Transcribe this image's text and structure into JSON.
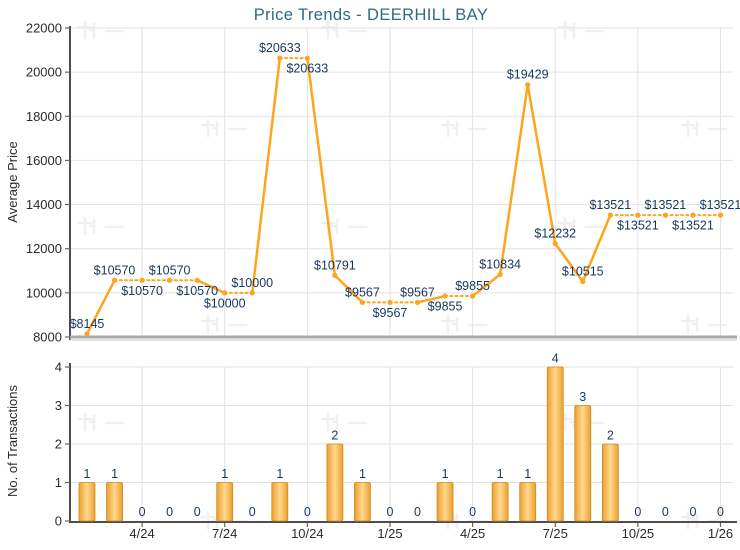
{
  "watermark_text": "科一",
  "colors": {
    "title": "#2E6C84",
    "data_label": "#17375E",
    "tick_label": "#2B2B2B",
    "grid": "#E2E2E2",
    "axis_dark": "#4D4D4D",
    "axis_tick": "#666666",
    "axis_silver": "#AAAAAA",
    "axis_silver_light": "#DADADA",
    "line": "#FFA41E",
    "bar_edge": "#EC9F2E",
    "bar_center": "#FFD88F",
    "bar_border": "#CF8A1E",
    "watermark": "#000000"
  },
  "chart_data": [
    {
      "type": "line",
      "title": "Price Trends - DEERHILL BAY",
      "ylabel": "Average Price",
      "ylim": [
        8000,
        22000
      ],
      "yticks": [
        22000,
        20000,
        18000,
        16000,
        14000,
        12000,
        10000,
        8000
      ],
      "grid": true,
      "x": [
        "2/24",
        "3/24",
        "4/24",
        "5/24",
        "6/24",
        "7/24",
        "8/24",
        "9/24",
        "10/24",
        "11/24",
        "12/24",
        "1/25",
        "2/25",
        "3/25",
        "4/25",
        "5/25",
        "6/25",
        "7/25",
        "8/25",
        "9/25",
        "10/25",
        "11/25",
        "12/25",
        "1/26"
      ],
      "xtick_labels": [
        "4/24",
        "7/24",
        "10/24",
        "1/25",
        "4/25",
        "7/25",
        "10/25",
        "1/26"
      ],
      "xtick_indices": [
        2,
        5,
        8,
        11,
        14,
        17,
        20,
        23
      ],
      "series": [
        {
          "name": "Average Price",
          "values": [
            8145,
            10570,
            10570,
            10570,
            10570,
            10000,
            10000,
            20633,
            20633,
            10791,
            9567,
            9567,
            9567,
            9855,
            9855,
            10834,
            19429,
            12232,
            10515,
            13521,
            13521,
            13521,
            13521,
            13521
          ]
        }
      ],
      "point_labels": [
        "$8145",
        "$10570",
        "$10570",
        "$10570",
        "$10570",
        "$10000",
        "$10000",
        "$20633",
        "$20633",
        "$10791",
        "$9567",
        "$9567",
        "$9567",
        "$9855",
        "$9855",
        "$10834",
        "$19429",
        "$12232",
        "$10515",
        "$13521",
        "$13521",
        "$13521",
        "$13521",
        "$13521"
      ],
      "label_positions": [
        "above",
        "above",
        "below",
        "above",
        "below",
        "below",
        "above",
        "above",
        "below",
        "above",
        "above",
        "below",
        "above",
        "below",
        "above",
        "above",
        "above",
        "above",
        "above",
        "above",
        "below",
        "above",
        "below",
        "above"
      ],
      "carried_forward": [
        false,
        false,
        true,
        true,
        true,
        false,
        true,
        false,
        true,
        false,
        false,
        true,
        true,
        false,
        true,
        false,
        false,
        false,
        false,
        false,
        true,
        true,
        true,
        true
      ]
    },
    {
      "type": "bar",
      "ylabel": "No. of Transactions",
      "ylim": [
        0,
        4
      ],
      "yticks": [
        4,
        3,
        2,
        1,
        0
      ],
      "grid": true,
      "categories": [
        "2/24",
        "3/24",
        "4/24",
        "5/24",
        "6/24",
        "7/24",
        "8/24",
        "9/24",
        "10/24",
        "11/24",
        "12/24",
        "1/25",
        "2/25",
        "3/25",
        "4/25",
        "5/25",
        "6/25",
        "7/25",
        "8/25",
        "9/25",
        "10/25",
        "11/25",
        "12/25",
        "1/26"
      ],
      "values": [
        1,
        1,
        0,
        0,
        0,
        1,
        0,
        1,
        0,
        2,
        1,
        0,
        0,
        1,
        0,
        1,
        1,
        4,
        3,
        2,
        0,
        0,
        0,
        0
      ],
      "xtick_labels": [
        "4/24",
        "7/24",
        "10/24",
        "1/25",
        "4/25",
        "7/25",
        "10/25",
        "1/26"
      ],
      "xtick_indices": [
        2,
        5,
        8,
        11,
        14,
        17,
        20,
        23
      ]
    }
  ]
}
